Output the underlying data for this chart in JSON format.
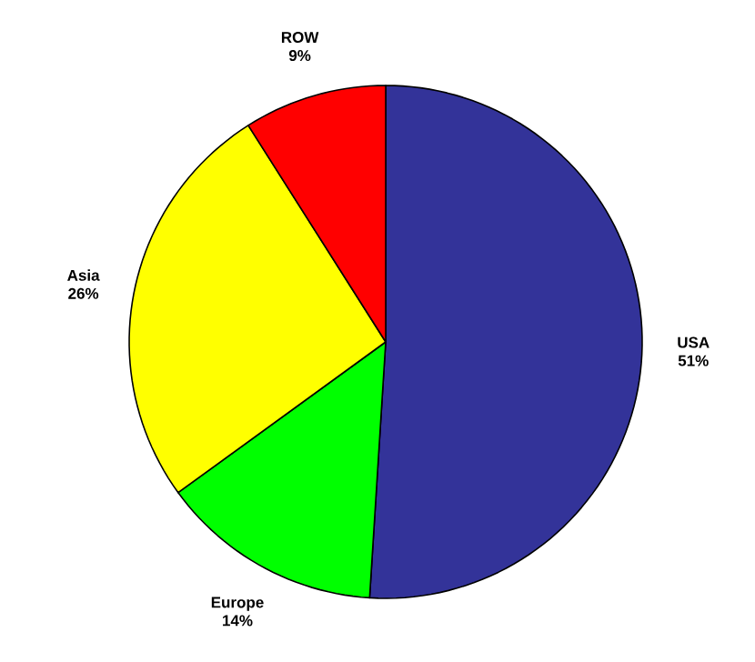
{
  "chart_data": {
    "type": "pie",
    "categories": [
      "USA",
      "Europe",
      "Asia",
      "ROW"
    ],
    "values": [
      51,
      14,
      26,
      9
    ],
    "value_labels": [
      "51%",
      "14%",
      "26%",
      "9%"
    ],
    "colors": [
      "#333399",
      "#00ff00",
      "#ffff00",
      "#ff0000"
    ]
  }
}
